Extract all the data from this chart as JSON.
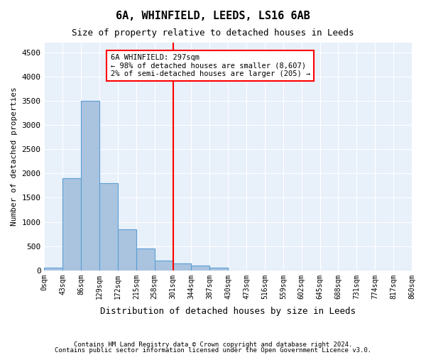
{
  "title": "6A, WHINFIELD, LEEDS, LS16 6AB",
  "subtitle": "Size of property relative to detached houses in Leeds",
  "xlabel": "Distribution of detached houses by size in Leeds",
  "ylabel": "Number of detached properties",
  "bar_color": "#aac4e0",
  "bar_edge_color": "#5a9fd4",
  "background_color": "#e8f0fa",
  "grid_color": "#ffffff",
  "vline_x": 7,
  "vline_color": "red",
  "annotation_text": "6A WHINFIELD: 297sqm\n← 98% of detached houses are smaller (8,607)\n2% of semi-detached houses are larger (205) →",
  "annotation_box_color": "red",
  "footer_line1": "Contains HM Land Registry data © Crown copyright and database right 2024.",
  "footer_line2": "Contains public sector information licensed under the Open Government Licence v3.0.",
  "categories": [
    "0sqm",
    "43sqm",
    "86sqm",
    "129sqm",
    "172sqm",
    "215sqm",
    "258sqm",
    "301sqm",
    "344sqm",
    "387sqm",
    "430sqm",
    "473sqm",
    "516sqm",
    "559sqm",
    "602sqm",
    "645sqm",
    "688sqm",
    "731sqm",
    "774sqm",
    "817sqm",
    "860sqm"
  ],
  "bar_heights": [
    50,
    1900,
    3500,
    1800,
    850,
    450,
    200,
    150,
    100,
    50,
    0,
    0,
    0,
    0,
    0,
    0,
    0,
    0,
    0,
    0
  ],
  "ylim": [
    0,
    4700
  ],
  "yticks": [
    0,
    500,
    1000,
    1500,
    2000,
    2500,
    3000,
    3500,
    4000,
    4500
  ]
}
